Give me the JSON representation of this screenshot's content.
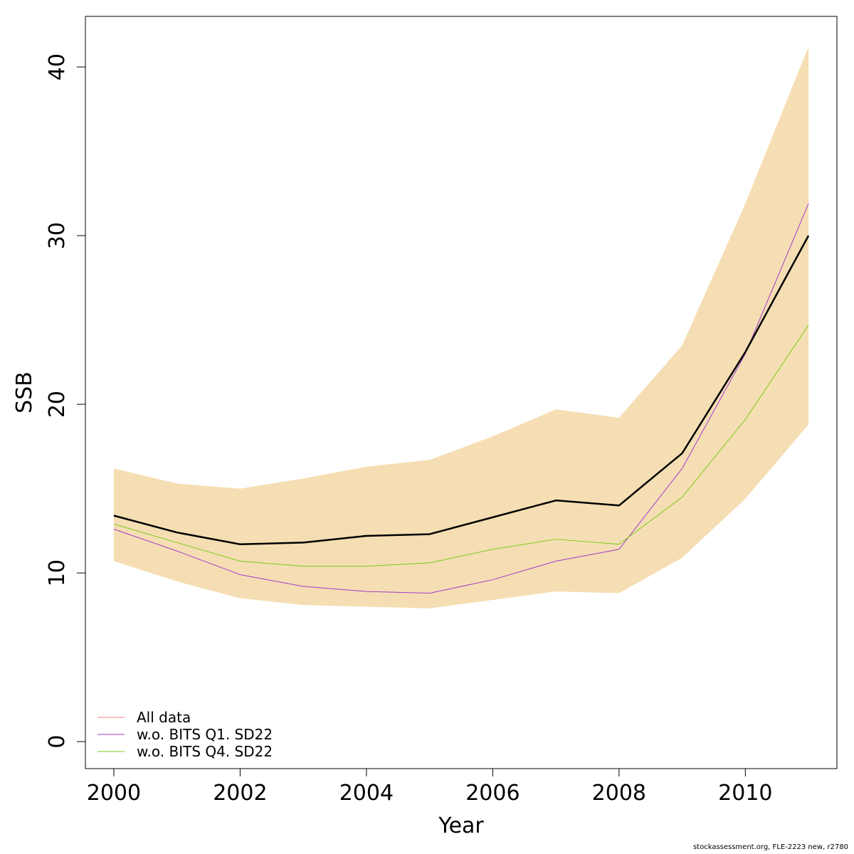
{
  "chart_data": {
    "type": "line",
    "title": "",
    "xlabel": "Year",
    "ylabel": "SSB",
    "xlim": [
      1999.55,
      2011.45
    ],
    "ylim": [
      -1.6,
      43
    ],
    "x_ticks": [
      2000,
      2002,
      2004,
      2006,
      2008,
      2010
    ],
    "y_ticks": [
      0,
      10,
      20,
      30,
      40
    ],
    "grid": false,
    "legend_position": "bottom-left",
    "x": [
      2000,
      2001,
      2002,
      2003,
      2004,
      2005,
      2006,
      2007,
      2008,
      2009,
      2010,
      2011
    ],
    "band": {
      "color": "#F5DEB3",
      "lower": [
        10.7,
        9.5,
        8.5,
        8.1,
        8.0,
        7.9,
        8.4,
        8.9,
        8.8,
        10.9,
        14.4,
        18.8
      ],
      "upper": [
        16.2,
        15.3,
        15.0,
        15.6,
        16.3,
        16.7,
        18.1,
        19.7,
        19.2,
        23.5,
        31.9,
        41.2
      ]
    },
    "series": [
      {
        "name": "",
        "color": "#000000",
        "width": 2.5,
        "legend": false,
        "values": [
          13.4,
          12.4,
          11.7,
          11.8,
          12.2,
          12.3,
          13.3,
          14.3,
          14.0,
          17.1,
          23.1,
          30.0
        ]
      },
      {
        "name": "All data",
        "color": "#F08080",
        "width": 1,
        "legend": true,
        "values": [
          13.4,
          12.4,
          11.7,
          11.8,
          12.2,
          12.3,
          13.3,
          14.3,
          14.0,
          17.1,
          23.1,
          30.0
        ]
      },
      {
        "name": "w.o. BITS Q1. SD22",
        "color": "#A33ACC",
        "width": 1,
        "legend": true,
        "values": [
          12.6,
          11.3,
          9.9,
          9.2,
          8.9,
          8.8,
          9.6,
          10.7,
          11.4,
          16.2,
          23.0,
          31.9
        ]
      },
      {
        "name": "w.o. BITS Q4. SD22",
        "color": "#7CCD1A",
        "width": 1,
        "legend": true,
        "values": [
          12.9,
          11.8,
          10.7,
          10.4,
          10.4,
          10.6,
          11.4,
          12.0,
          11.7,
          14.5,
          19.1,
          24.7
        ]
      }
    ]
  },
  "footer": "stockassessment.org, FLE-2223 new, r2780"
}
